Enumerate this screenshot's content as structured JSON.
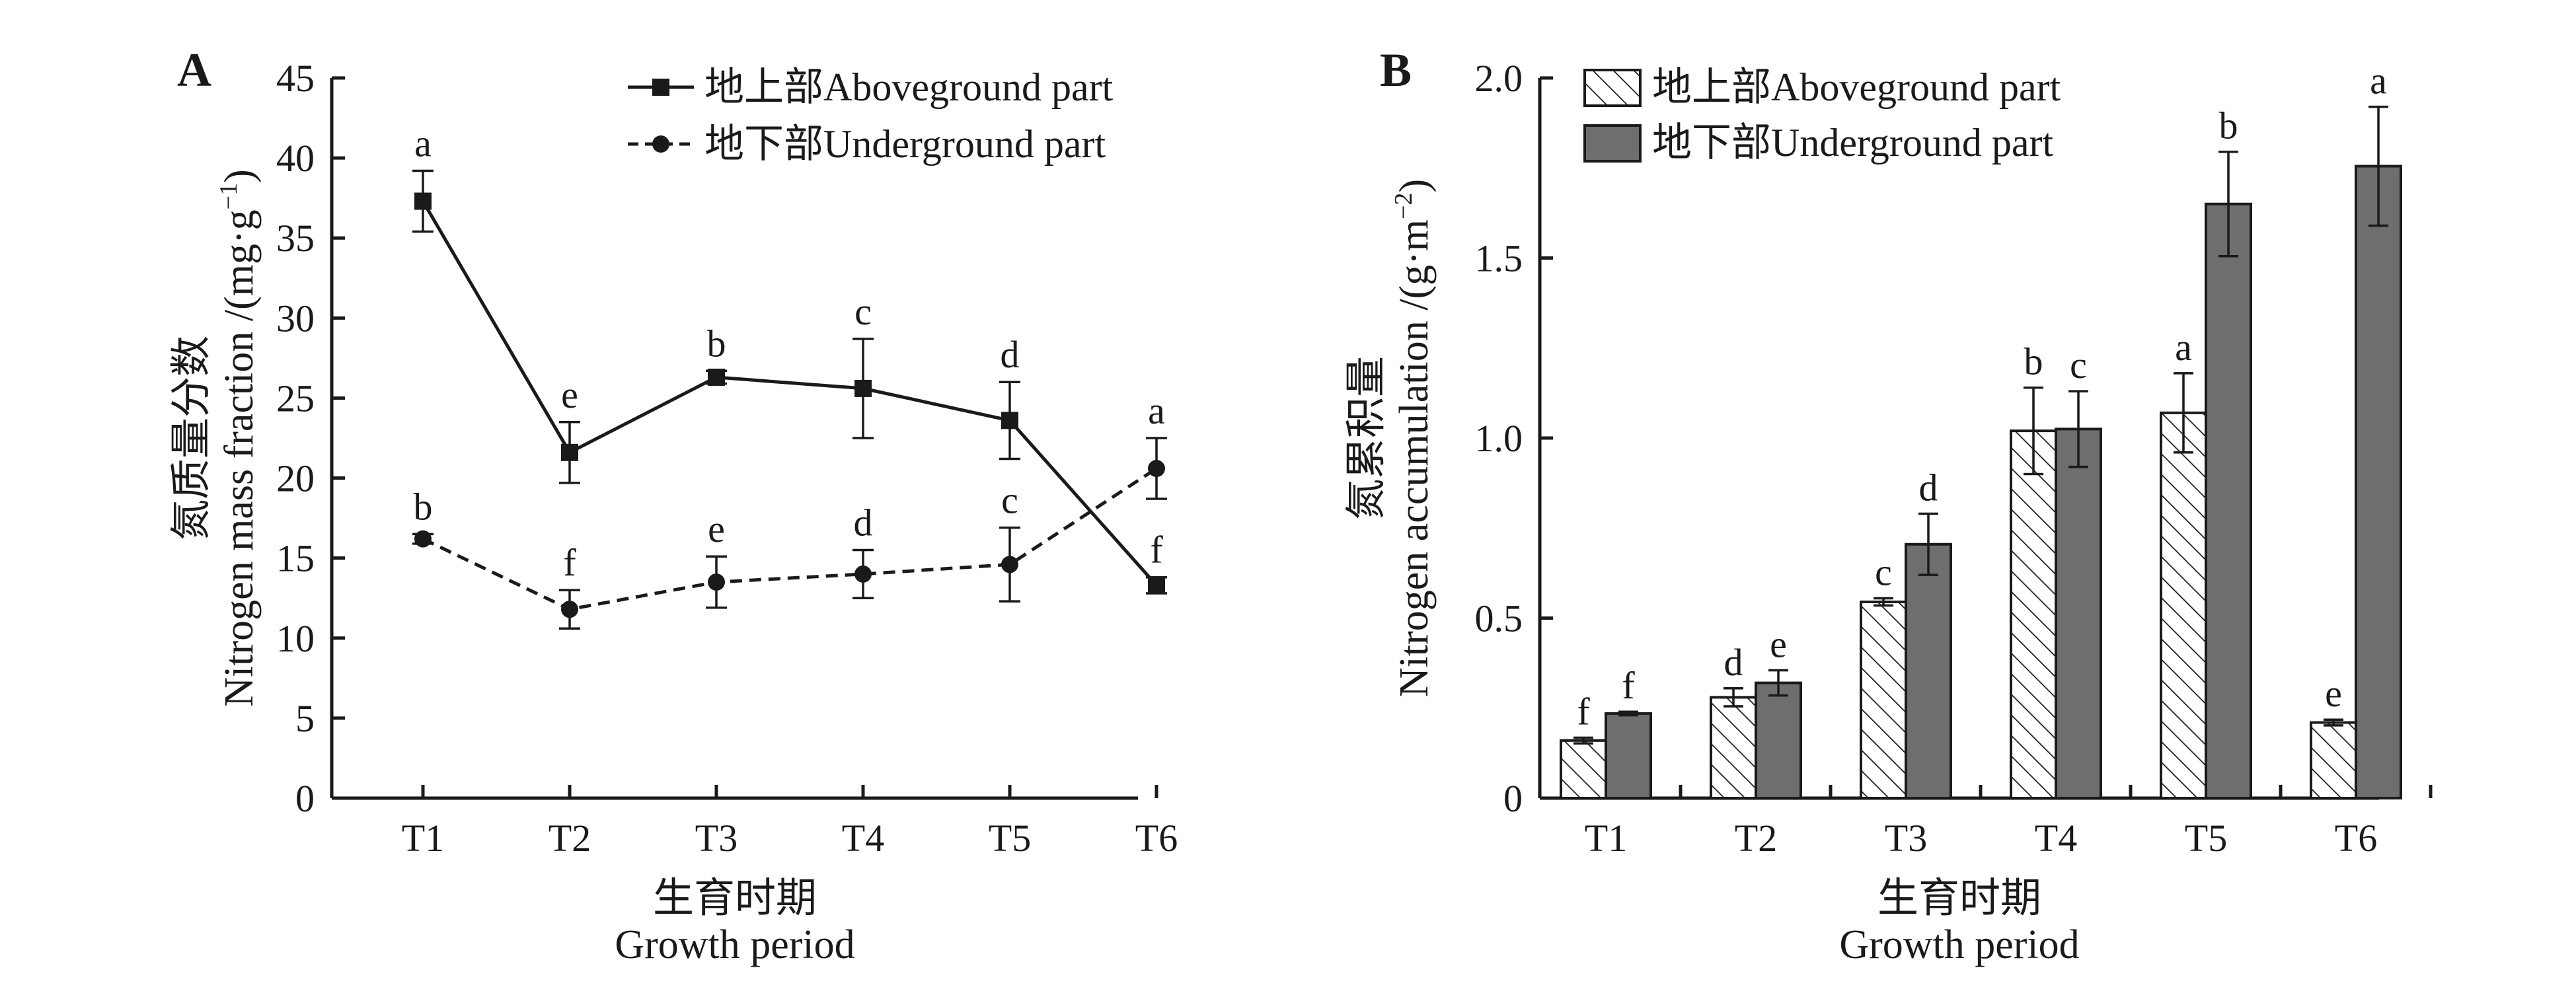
{
  "chart_data": [
    {
      "panel": "A",
      "type": "line",
      "categories": [
        "T1",
        "T2",
        "T3",
        "T4",
        "T5",
        "T6"
      ],
      "series": [
        {
          "name": "地上部Aboveground part",
          "values": [
            37.3,
            21.6,
            26.3,
            25.6,
            23.6,
            13.3
          ],
          "errors": [
            1.9,
            1.9,
            0.4,
            3.1,
            2.4,
            0.5
          ],
          "letters": [
            "a",
            "e",
            "b",
            "c",
            "d",
            "f"
          ],
          "line": "solid",
          "marker": "square"
        },
        {
          "name": "地下部Underground part",
          "values": [
            16.2,
            11.8,
            13.5,
            14.0,
            14.6,
            20.6
          ],
          "errors": [
            0.3,
            1.2,
            1.6,
            1.5,
            2.3,
            1.9
          ],
          "letters": [
            "b",
            "f",
            "e",
            "d",
            "c",
            "a"
          ],
          "line": "dashed",
          "marker": "circle"
        }
      ],
      "ylim": [
        0,
        45
      ],
      "yticks": [
        0,
        5,
        10,
        15,
        20,
        25,
        30,
        35,
        40,
        45
      ],
      "ylabel_cn": "氮质量分数",
      "ylabel_en": "Nitrogen mass fraction /(mg·g",
      "ylabel_sup": "−1",
      "xlabel_cn": "生育时期",
      "xlabel_en": "Growth period",
      "legend": "top-right"
    },
    {
      "panel": "B",
      "type": "bar",
      "categories": [
        "T1",
        "T2",
        "T3",
        "T4",
        "T5",
        "T6"
      ],
      "series": [
        {
          "name": "地上部Aboveground part",
          "values": [
            0.16,
            0.28,
            0.545,
            1.02,
            1.07,
            0.21
          ],
          "errors": [
            0.008,
            0.025,
            0.01,
            0.12,
            0.11,
            0.008
          ],
          "letters": [
            "f",
            "d",
            "c",
            "b",
            "a",
            "e"
          ],
          "fill": "hatched"
        },
        {
          "name": "地下部Underground part",
          "values": [
            0.235,
            0.32,
            0.705,
            1.025,
            1.65,
            1.755
          ],
          "errors": [
            0.005,
            0.035,
            0.085,
            0.105,
            0.145,
            0.165
          ],
          "letters": [
            "f",
            "e",
            "d",
            "c",
            "b",
            "a"
          ],
          "fill": "#6e6e6e"
        }
      ],
      "ylim": [
        0,
        2.0
      ],
      "yticks": [
        "0",
        "0.5",
        "1.0",
        "1.5",
        "2.0"
      ],
      "ylabel_cn": "氮累积量",
      "ylabel_en": "Nitrogen accumulation /(g·m",
      "ylabel_sup": "−2",
      "xlabel_cn": "生育时期",
      "xlabel_en": "Growth period",
      "legend": "top-left"
    }
  ],
  "panel_labels": [
    "A",
    "B"
  ],
  "colors": {
    "ink": "#1a1a1a",
    "dark_bar": "#6e6e6e"
  }
}
